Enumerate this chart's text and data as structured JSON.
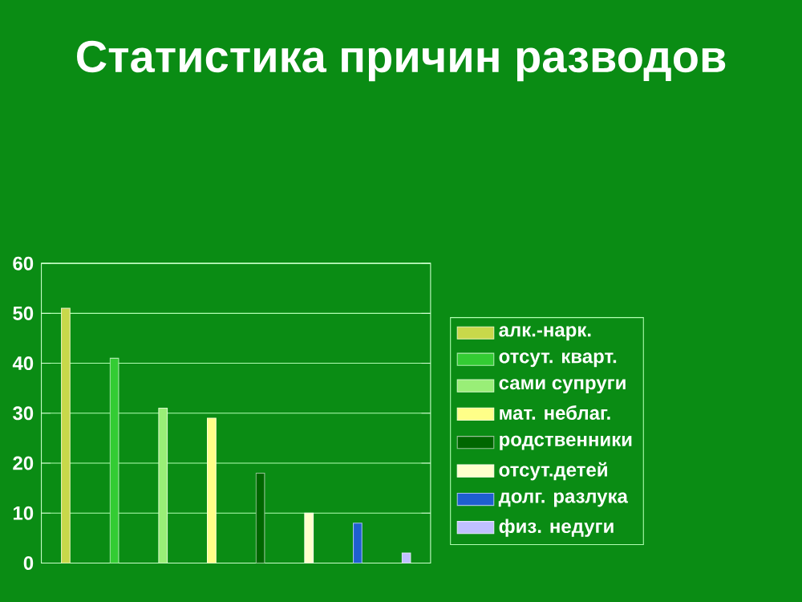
{
  "chart_data": {
    "type": "bar",
    "title": "Статистика причин разводов",
    "categories": [
      null,
      null,
      null,
      null,
      null,
      null,
      null,
      null
    ],
    "series": [
      {
        "name": "алк.-нарк.",
        "color": "#c8d84a",
        "values": [
          51,
          null,
          null,
          null,
          null,
          null,
          null,
          null
        ]
      },
      {
        "name": "отсут. кварт.",
        "color": "#33cc33",
        "values": [
          null,
          41,
          null,
          null,
          null,
          null,
          null,
          null
        ]
      },
      {
        "name": "сами супруги",
        "color": "#99ee77",
        "values": [
          null,
          null,
          31,
          null,
          null,
          null,
          null,
          null
        ]
      },
      {
        "name": "мат. неблаг.",
        "color": "#ffff88",
        "values": [
          null,
          null,
          null,
          29,
          null,
          null,
          null,
          null
        ]
      },
      {
        "name": "родственники",
        "color": "#006600",
        "values": [
          null,
          null,
          null,
          null,
          18,
          null,
          null,
          null
        ]
      },
      {
        "name": "отсут.детей",
        "color": "#ffffcc",
        "values": [
          null,
          null,
          null,
          null,
          null,
          10,
          null,
          null
        ]
      },
      {
        "name": "долг. разлука",
        "color": "#1f5fd0",
        "values": [
          null,
          null,
          null,
          null,
          null,
          null,
          8,
          null
        ]
      },
      {
        "name": "физ. недуги",
        "color": "#c0c0ff",
        "values": [
          null,
          null,
          null,
          null,
          null,
          null,
          null,
          2
        ]
      }
    ],
    "ylim": [
      0,
      60
    ],
    "yticks": [
      0,
      10,
      20,
      30,
      40,
      50,
      60
    ],
    "grid": "y",
    "legend": "right"
  }
}
